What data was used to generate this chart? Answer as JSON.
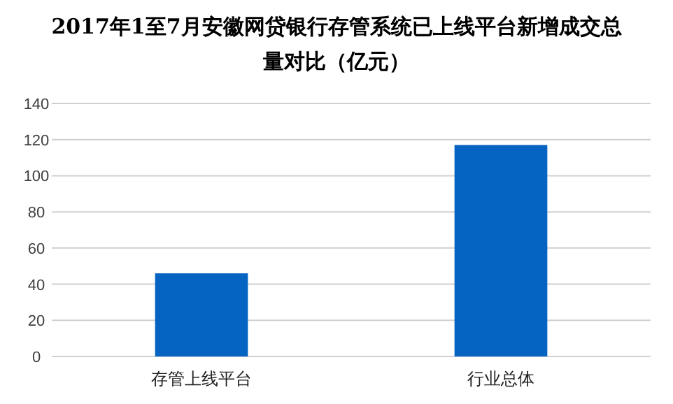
{
  "chart_data": {
    "type": "bar",
    "title": "2017年1至7月安徽网贷银行存管系统已上线平台新增成交总量对比（亿元）",
    "categories": [
      "存管上线平台",
      "行业总体"
    ],
    "values": [
      46,
      117
    ],
    "color": "#0563c1",
    "ylim": [
      0,
      140
    ],
    "yticks": [
      0,
      20,
      40,
      60,
      80,
      100,
      120,
      140
    ],
    "grid": "y"
  }
}
